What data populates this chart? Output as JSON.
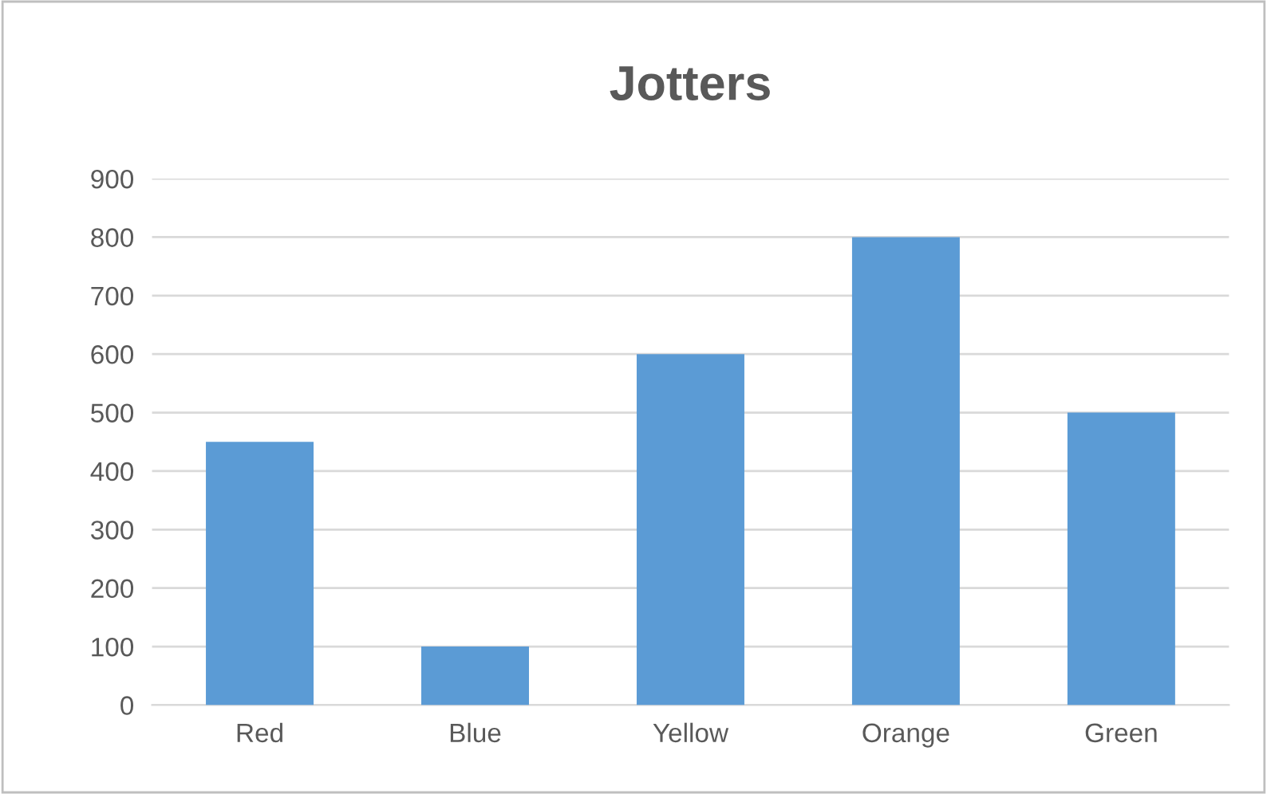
{
  "chart_data": {
    "type": "bar",
    "title": "Jotters",
    "categories": [
      "Red",
      "Blue",
      "Yellow",
      "Orange",
      "Green"
    ],
    "values": [
      450,
      100,
      600,
      800,
      500
    ],
    "color": "#5b9bd5",
    "ylim": [
      0,
      900
    ],
    "yticks": [
      0,
      100,
      200,
      300,
      400,
      500,
      600,
      700,
      800,
      900
    ],
    "grid": "y",
    "legend": false
  }
}
